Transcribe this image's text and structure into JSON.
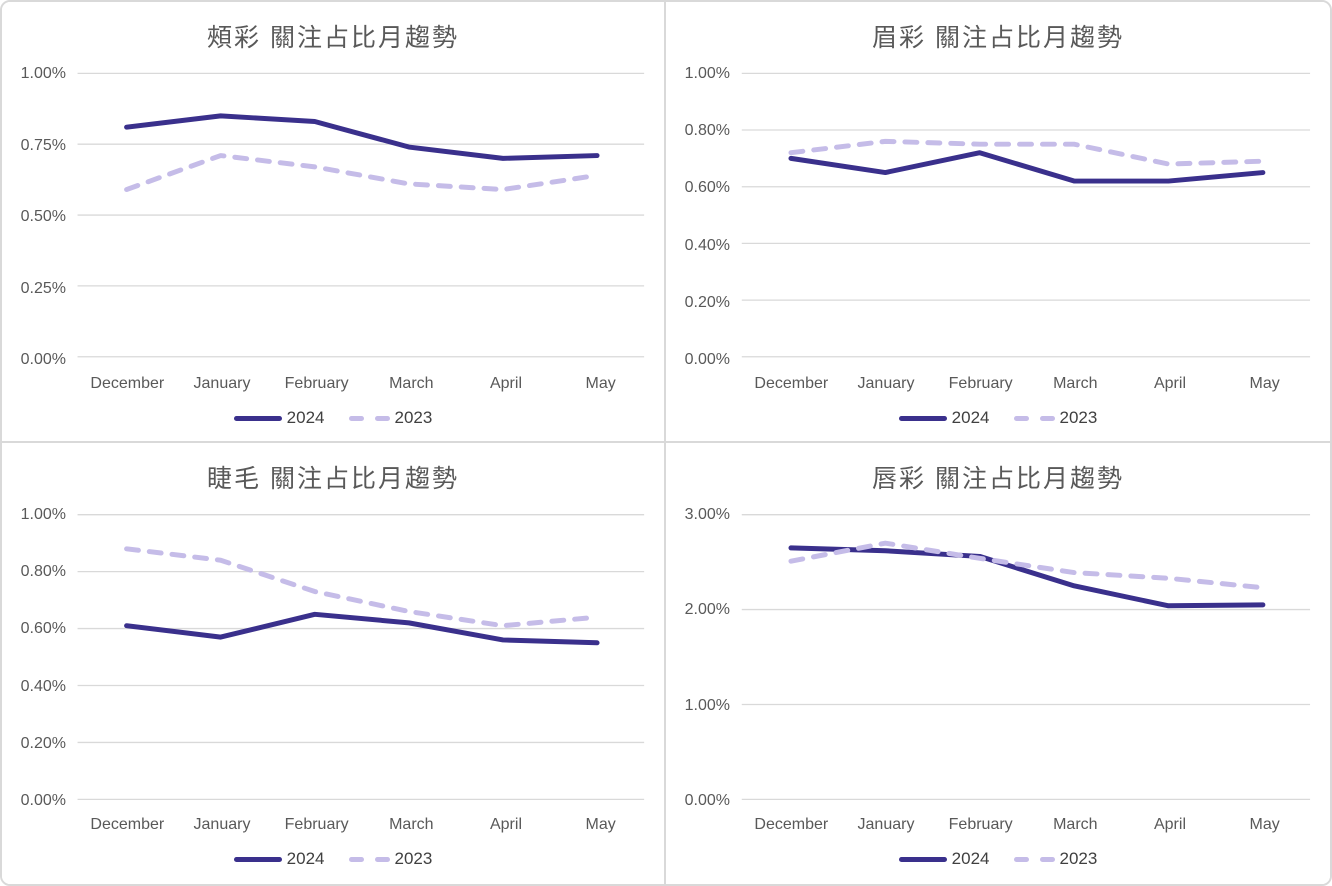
{
  "colors": {
    "series_2024": "#3A308C",
    "series_2023": "#C5BCE8",
    "title_text": "#595959",
    "axis_text": "#595959",
    "legend_text": "#404040",
    "gridline": "#D9D9D9",
    "card_border": "#D9D9D9",
    "background": "#FFFFFF"
  },
  "chart_data": [
    {
      "type": "line",
      "title": "頰彩 關注占比月趨勢",
      "xlabel": "",
      "ylabel": "",
      "unit": "percent",
      "grid": true,
      "legend_position": "bottom",
      "categories": [
        "December",
        "January",
        "February",
        "March",
        "April",
        "May"
      ],
      "ylim": [
        0,
        1.0
      ],
      "y_ticks": [
        {
          "label": "1.00%",
          "value": 1.0
        },
        {
          "label": "0.75%",
          "value": 0.75
        },
        {
          "label": "0.50%",
          "value": 0.5
        },
        {
          "label": "0.25%",
          "value": 0.25
        },
        {
          "label": "0.00%",
          "value": 0.0
        }
      ],
      "series": [
        {
          "name": "2024",
          "style": "solid",
          "color_key": "series_2024",
          "values": [
            0.81,
            0.85,
            0.83,
            0.74,
            0.7,
            0.71
          ]
        },
        {
          "name": "2023",
          "style": "dashed",
          "color_key": "series_2023",
          "values": [
            0.59,
            0.71,
            0.67,
            0.61,
            0.59,
            0.64
          ]
        }
      ]
    },
    {
      "type": "line",
      "title": "眉彩 關注占比月趨勢",
      "xlabel": "",
      "ylabel": "",
      "unit": "percent",
      "grid": true,
      "legend_position": "bottom",
      "categories": [
        "December",
        "January",
        "February",
        "March",
        "April",
        "May"
      ],
      "ylim": [
        0,
        1.0
      ],
      "y_ticks": [
        {
          "label": "1.00%",
          "value": 1.0
        },
        {
          "label": "0.80%",
          "value": 0.8
        },
        {
          "label": "0.60%",
          "value": 0.6
        },
        {
          "label": "0.40%",
          "value": 0.4
        },
        {
          "label": "0.20%",
          "value": 0.2
        },
        {
          "label": "0.00%",
          "value": 0.0
        }
      ],
      "series": [
        {
          "name": "2024",
          "style": "solid",
          "color_key": "series_2024",
          "values": [
            0.7,
            0.65,
            0.72,
            0.62,
            0.62,
            0.65
          ]
        },
        {
          "name": "2023",
          "style": "dashed",
          "color_key": "series_2023",
          "values": [
            0.72,
            0.76,
            0.75,
            0.75,
            0.68,
            0.69
          ]
        }
      ]
    },
    {
      "type": "line",
      "title": "睫毛 關注占比月趨勢",
      "xlabel": "",
      "ylabel": "",
      "unit": "percent",
      "grid": true,
      "legend_position": "bottom",
      "categories": [
        "December",
        "January",
        "February",
        "March",
        "April",
        "May"
      ],
      "ylim": [
        0,
        1.0
      ],
      "y_ticks": [
        {
          "label": "1.00%",
          "value": 1.0
        },
        {
          "label": "0.80%",
          "value": 0.8
        },
        {
          "label": "0.60%",
          "value": 0.6
        },
        {
          "label": "0.40%",
          "value": 0.4
        },
        {
          "label": "0.20%",
          "value": 0.2
        },
        {
          "label": "0.00%",
          "value": 0.0
        }
      ],
      "series": [
        {
          "name": "2024",
          "style": "solid",
          "color_key": "series_2024",
          "values": [
            0.61,
            0.57,
            0.65,
            0.62,
            0.56,
            0.55
          ]
        },
        {
          "name": "2023",
          "style": "dashed",
          "color_key": "series_2023",
          "values": [
            0.88,
            0.84,
            0.73,
            0.66,
            0.61,
            0.64
          ]
        }
      ]
    },
    {
      "type": "line",
      "title": "唇彩 關注占比月趨勢",
      "xlabel": "",
      "ylabel": "",
      "unit": "percent",
      "grid": true,
      "legend_position": "bottom",
      "categories": [
        "December",
        "January",
        "February",
        "March",
        "April",
        "May"
      ],
      "ylim": [
        0,
        3.0
      ],
      "y_ticks": [
        {
          "label": "3.00%",
          "value": 3.0
        },
        {
          "label": "2.00%",
          "value": 2.0
        },
        {
          "label": "1.00%",
          "value": 1.0
        },
        {
          "label": "0.00%",
          "value": 0.0
        }
      ],
      "series": [
        {
          "name": "2024",
          "style": "solid",
          "color_key": "series_2024",
          "values": [
            2.65,
            2.62,
            2.56,
            2.25,
            2.04,
            2.05
          ]
        },
        {
          "name": "2023",
          "style": "dashed",
          "color_key": "series_2023",
          "values": [
            2.51,
            2.7,
            2.54,
            2.39,
            2.33,
            2.23
          ]
        }
      ]
    }
  ]
}
